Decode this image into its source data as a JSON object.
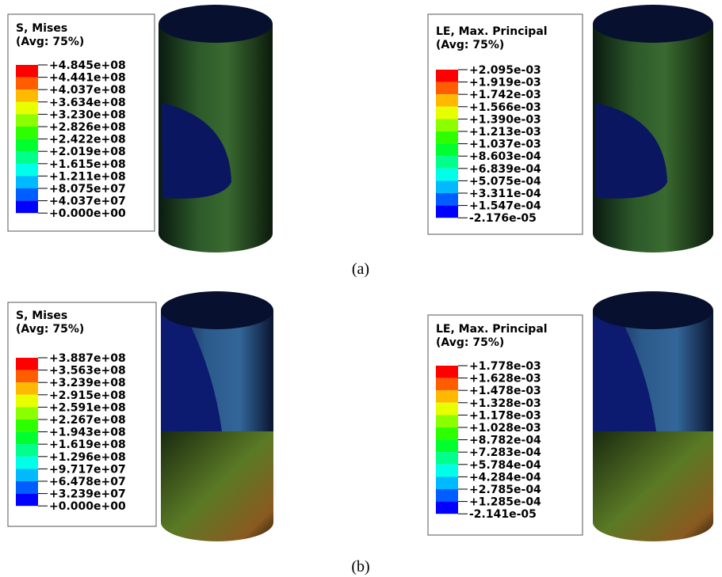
{
  "legend_colors": [
    "#ff0000",
    "#ff5d00",
    "#ffb900",
    "#e8ff00",
    "#8bff00",
    "#2eff00",
    "#00ff2e",
    "#00ff8b",
    "#00ffe8",
    "#00b9ff",
    "#005dff",
    "#0000ff"
  ],
  "panels": [
    {
      "title": "S, Mises",
      "subtitle": "(Avg: 75%)",
      "labels": [
        "+4.845e+08",
        "+4.441e+08",
        "+4.037e+08",
        "+3.634e+08",
        "+3.230e+08",
        "+2.826e+08",
        "+2.422e+08",
        "+2.019e+08",
        "+1.615e+08",
        "+1.211e+08",
        "+8.075e+07",
        "+4.037e+07",
        "+0.000e+00"
      ]
    },
    {
      "title": "LE, Max. Principal",
      "subtitle": "(Avg: 75%)",
      "labels": [
        "+2.095e-03",
        "+1.919e-03",
        "+1.742e-03",
        "+1.566e-03",
        "+1.390e-03",
        "+1.213e-03",
        "+1.037e-03",
        "+8.603e-04",
        "+6.839e-04",
        "+5.075e-04",
        "+3.311e-04",
        "+1.547e-04",
        "-2.176e-05"
      ]
    },
    {
      "title": "S, Mises",
      "subtitle": "(Avg: 75%)",
      "labels": [
        "+3.887e+08",
        "+3.563e+08",
        "+3.239e+08",
        "+2.915e+08",
        "+2.591e+08",
        "+2.267e+08",
        "+1.943e+08",
        "+1.619e+08",
        "+1.296e+08",
        "+9.717e+07",
        "+6.478e+07",
        "+3.239e+07",
        "+0.000e+00"
      ]
    },
    {
      "title": "LE, Max. Principal",
      "subtitle": "(Avg: 75%)",
      "labels": [
        "+1.778e-03",
        "+1.628e-03",
        "+1.478e-03",
        "+1.328e-03",
        "+1.178e-03",
        "+1.028e-03",
        "+8.782e-04",
        "+7.283e-04",
        "+5.784e-04",
        "+4.284e-04",
        "+2.785e-04",
        "+1.285e-04",
        "-2.141e-05"
      ]
    }
  ],
  "captions": [
    "(a)",
    "(b)"
  ]
}
